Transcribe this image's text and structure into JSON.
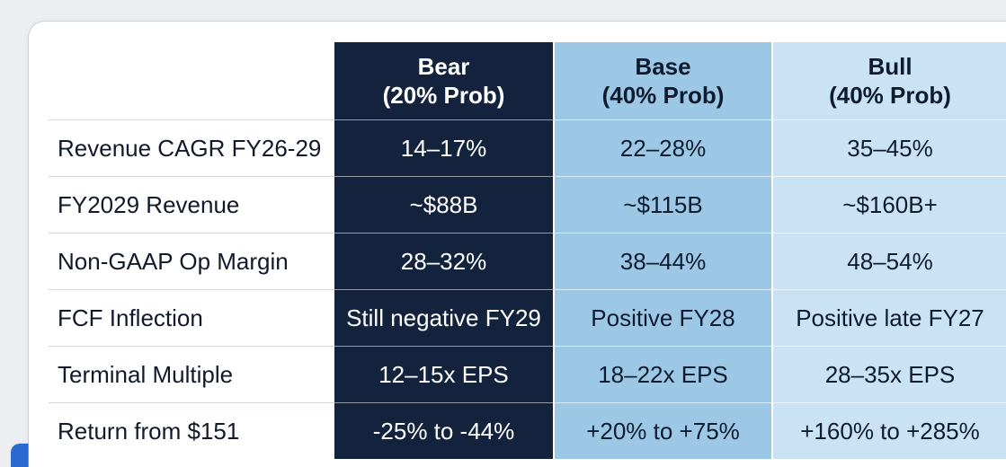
{
  "columns": [
    {
      "name": "Bear",
      "prob": "(20% Prob)"
    },
    {
      "name": "Base",
      "prob": "(40% Prob)"
    },
    {
      "name": "Bull",
      "prob": "(40% Prob)"
    }
  ],
  "rows": [
    {
      "label": "Revenue CAGR FY26-29",
      "bear": "14–17%",
      "base": "22–28%",
      "bull": "35–45%"
    },
    {
      "label": "FY2029 Revenue",
      "bear": "~$88B",
      "base": "~$115B",
      "bull": "~$160B+"
    },
    {
      "label": "Non-GAAP Op Margin",
      "bear": "28–32%",
      "base": "38–44%",
      "bull": "48–54%"
    },
    {
      "label": "FCF Inflection",
      "bear": "Still negative FY29",
      "base": "Positive FY28",
      "bull": "Positive late FY27"
    },
    {
      "label": "Terminal Multiple",
      "bear": "12–15x EPS",
      "base": "18–22x EPS",
      "bull": "28–35x EPS"
    },
    {
      "label": "Return from $151",
      "bear": "-25% to -44%",
      "base": "+20% to +75%",
      "bull": "+160% to +285%"
    }
  ],
  "colors": {
    "bear": "#13233d",
    "base": "#9cc8e6",
    "bull": "#c9e3f4",
    "accent_bar": "#2a6ad1"
  }
}
